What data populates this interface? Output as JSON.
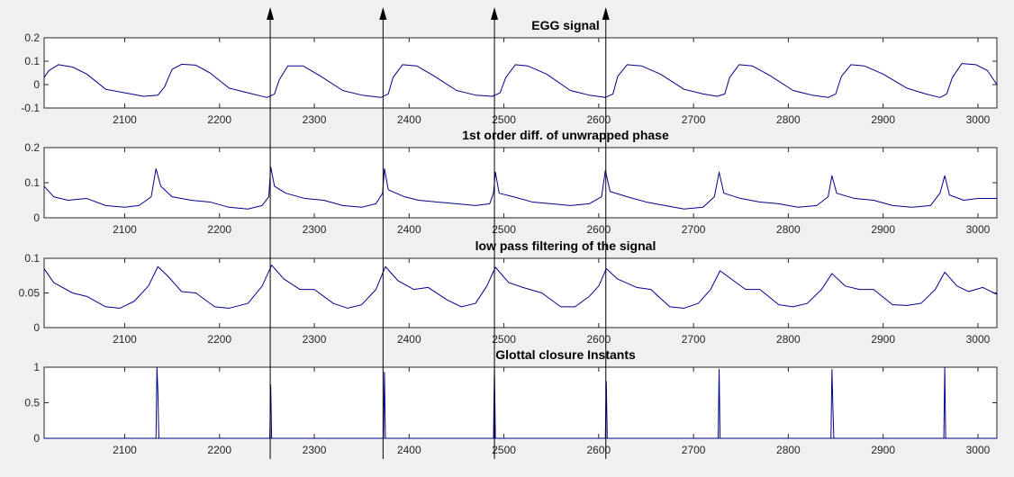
{
  "figure": {
    "background": "#f0f0f0",
    "plot_color": "#00008b",
    "arrow_color": "#000000"
  },
  "chart_data": [
    {
      "type": "line",
      "title": "EGG signal",
      "xlim": [
        2015,
        3020
      ],
      "ylim": [
        -0.1,
        0.2
      ],
      "xticks": [
        2100,
        2200,
        2300,
        2400,
        2500,
        2600,
        2700,
        2800,
        2900,
        3000
      ],
      "yticks": [
        -0.1,
        0,
        0.1,
        0.2
      ],
      "ytick_labels": [
        "-0.1",
        "0",
        "0.1",
        "0.2"
      ],
      "grid": false,
      "series": [
        {
          "values": [
            [
              2015,
              0.03
            ],
            [
              2020,
              0.06
            ],
            [
              2030,
              0.085
            ],
            [
              2045,
              0.075
            ],
            [
              2060,
              0.045
            ],
            [
              2080,
              -0.02
            ],
            [
              2100,
              -0.035
            ],
            [
              2120,
              -0.05
            ],
            [
              2135,
              -0.045
            ],
            [
              2142,
              -0.01
            ],
            [
              2150,
              0.065
            ],
            [
              2160,
              0.087
            ],
            [
              2175,
              0.083
            ],
            [
              2190,
              0.05
            ],
            [
              2210,
              -0.015
            ],
            [
              2230,
              -0.035
            ],
            [
              2250,
              -0.055
            ],
            [
              2258,
              -0.04
            ],
            [
              2263,
              0.02
            ],
            [
              2272,
              0.08
            ],
            [
              2288,
              0.08
            ],
            [
              2305,
              0.04
            ],
            [
              2330,
              -0.025
            ],
            [
              2350,
              -0.045
            ],
            [
              2370,
              -0.055
            ],
            [
              2378,
              -0.04
            ],
            [
              2383,
              0.03
            ],
            [
              2393,
              0.085
            ],
            [
              2408,
              0.08
            ],
            [
              2425,
              0.04
            ],
            [
              2450,
              -0.025
            ],
            [
              2470,
              -0.045
            ],
            [
              2488,
              -0.05
            ],
            [
              2496,
              -0.035
            ],
            [
              2502,
              0.03
            ],
            [
              2512,
              0.085
            ],
            [
              2525,
              0.08
            ],
            [
              2545,
              0.045
            ],
            [
              2570,
              -0.025
            ],
            [
              2590,
              -0.045
            ],
            [
              2607,
              -0.055
            ],
            [
              2615,
              -0.04
            ],
            [
              2620,
              0.035
            ],
            [
              2630,
              0.085
            ],
            [
              2645,
              0.08
            ],
            [
              2665,
              0.045
            ],
            [
              2690,
              -0.02
            ],
            [
              2710,
              -0.04
            ],
            [
              2725,
              -0.05
            ],
            [
              2733,
              -0.04
            ],
            [
              2738,
              0.03
            ],
            [
              2748,
              0.085
            ],
            [
              2762,
              0.08
            ],
            [
              2780,
              0.04
            ],
            [
              2805,
              -0.025
            ],
            [
              2825,
              -0.045
            ],
            [
              2842,
              -0.055
            ],
            [
              2850,
              -0.04
            ],
            [
              2856,
              0.035
            ],
            [
              2866,
              0.085
            ],
            [
              2880,
              0.08
            ],
            [
              2900,
              0.045
            ],
            [
              2925,
              -0.015
            ],
            [
              2945,
              -0.04
            ],
            [
              2960,
              -0.055
            ],
            [
              2967,
              -0.04
            ],
            [
              2973,
              0.03
            ],
            [
              2983,
              0.09
            ],
            [
              2998,
              0.085
            ],
            [
              3010,
              0.06
            ],
            [
              3020,
              0.0
            ]
          ]
        }
      ]
    },
    {
      "type": "line",
      "title": "1st order diff. of unwrapped phase",
      "xlim": [
        2015,
        3020
      ],
      "ylim": [
        0,
        0.2
      ],
      "xticks": [
        2100,
        2200,
        2300,
        2400,
        2500,
        2600,
        2700,
        2800,
        2900,
        3000
      ],
      "yticks": [
        0,
        0.1,
        0.2
      ],
      "ytick_labels": [
        "0",
        "0.1",
        "0.2"
      ],
      "grid": false,
      "series": [
        {
          "values": [
            [
              2015,
              0.09
            ],
            [
              2025,
              0.06
            ],
            [
              2040,
              0.05
            ],
            [
              2060,
              0.055
            ],
            [
              2080,
              0.035
            ],
            [
              2100,
              0.03
            ],
            [
              2115,
              0.035
            ],
            [
              2128,
              0.06
            ],
            [
              2133,
              0.14
            ],
            [
              2138,
              0.09
            ],
            [
              2150,
              0.06
            ],
            [
              2170,
              0.05
            ],
            [
              2190,
              0.045
            ],
            [
              2210,
              0.03
            ],
            [
              2230,
              0.025
            ],
            [
              2245,
              0.035
            ],
            [
              2252,
              0.06
            ],
            [
              2254,
              0.145
            ],
            [
              2258,
              0.09
            ],
            [
              2270,
              0.07
            ],
            [
              2290,
              0.055
            ],
            [
              2310,
              0.05
            ],
            [
              2330,
              0.035
            ],
            [
              2350,
              0.03
            ],
            [
              2365,
              0.04
            ],
            [
              2372,
              0.07
            ],
            [
              2374,
              0.14
            ],
            [
              2378,
              0.08
            ],
            [
              2395,
              0.06
            ],
            [
              2410,
              0.05
            ],
            [
              2430,
              0.045
            ],
            [
              2450,
              0.04
            ],
            [
              2470,
              0.035
            ],
            [
              2485,
              0.04
            ],
            [
              2489,
              0.07
            ],
            [
              2491,
              0.13
            ],
            [
              2495,
              0.07
            ],
            [
              2510,
              0.06
            ],
            [
              2530,
              0.045
            ],
            [
              2550,
              0.04
            ],
            [
              2570,
              0.035
            ],
            [
              2590,
              0.04
            ],
            [
              2603,
              0.06
            ],
            [
              2607,
              0.135
            ],
            [
              2612,
              0.075
            ],
            [
              2630,
              0.06
            ],
            [
              2650,
              0.045
            ],
            [
              2670,
              0.035
            ],
            [
              2690,
              0.025
            ],
            [
              2710,
              0.03
            ],
            [
              2722,
              0.06
            ],
            [
              2727,
              0.13
            ],
            [
              2732,
              0.07
            ],
            [
              2750,
              0.055
            ],
            [
              2770,
              0.045
            ],
            [
              2790,
              0.04
            ],
            [
              2810,
              0.03
            ],
            [
              2830,
              0.035
            ],
            [
              2842,
              0.06
            ],
            [
              2846,
              0.12
            ],
            [
              2851,
              0.07
            ],
            [
              2870,
              0.055
            ],
            [
              2890,
              0.05
            ],
            [
              2910,
              0.035
            ],
            [
              2930,
              0.03
            ],
            [
              2950,
              0.035
            ],
            [
              2960,
              0.07
            ],
            [
              2965,
              0.12
            ],
            [
              2970,
              0.065
            ],
            [
              2985,
              0.05
            ],
            [
              3000,
              0.055
            ],
            [
              3020,
              0.055
            ]
          ]
        }
      ]
    },
    {
      "type": "line",
      "title": "low pass filtering of the signal",
      "xlim": [
        2015,
        3020
      ],
      "ylim": [
        0,
        0.1
      ],
      "xticks": [
        2100,
        2200,
        2300,
        2400,
        2500,
        2600,
        2700,
        2800,
        2900,
        3000
      ],
      "yticks": [
        0,
        0.05,
        0.1
      ],
      "ytick_labels": [
        "0",
        "0.05",
        "0.1"
      ],
      "grid": false,
      "series": [
        {
          "values": [
            [
              2015,
              0.085
            ],
            [
              2025,
              0.065
            ],
            [
              2045,
              0.05
            ],
            [
              2060,
              0.045
            ],
            [
              2080,
              0.03
            ],
            [
              2095,
              0.028
            ],
            [
              2110,
              0.038
            ],
            [
              2125,
              0.06
            ],
            [
              2135,
              0.088
            ],
            [
              2145,
              0.075
            ],
            [
              2160,
              0.052
            ],
            [
              2175,
              0.05
            ],
            [
              2195,
              0.03
            ],
            [
              2210,
              0.028
            ],
            [
              2230,
              0.035
            ],
            [
              2245,
              0.06
            ],
            [
              2255,
              0.09
            ],
            [
              2268,
              0.07
            ],
            [
              2285,
              0.055
            ],
            [
              2300,
              0.055
            ],
            [
              2320,
              0.035
            ],
            [
              2335,
              0.028
            ],
            [
              2350,
              0.033
            ],
            [
              2365,
              0.055
            ],
            [
              2375,
              0.088
            ],
            [
              2388,
              0.068
            ],
            [
              2405,
              0.055
            ],
            [
              2420,
              0.058
            ],
            [
              2440,
              0.04
            ],
            [
              2455,
              0.03
            ],
            [
              2470,
              0.035
            ],
            [
              2482,
              0.06
            ],
            [
              2491,
              0.087
            ],
            [
              2505,
              0.065
            ],
            [
              2520,
              0.058
            ],
            [
              2540,
              0.05
            ],
            [
              2560,
              0.03
            ],
            [
              2575,
              0.03
            ],
            [
              2590,
              0.045
            ],
            [
              2600,
              0.06
            ],
            [
              2608,
              0.085
            ],
            [
              2620,
              0.07
            ],
            [
              2640,
              0.058
            ],
            [
              2655,
              0.055
            ],
            [
              2675,
              0.03
            ],
            [
              2690,
              0.028
            ],
            [
              2705,
              0.035
            ],
            [
              2718,
              0.055
            ],
            [
              2728,
              0.082
            ],
            [
              2740,
              0.07
            ],
            [
              2755,
              0.055
            ],
            [
              2770,
              0.055
            ],
            [
              2790,
              0.033
            ],
            [
              2805,
              0.03
            ],
            [
              2820,
              0.035
            ],
            [
              2835,
              0.055
            ],
            [
              2846,
              0.078
            ],
            [
              2860,
              0.06
            ],
            [
              2875,
              0.055
            ],
            [
              2890,
              0.055
            ],
            [
              2910,
              0.033
            ],
            [
              2925,
              0.032
            ],
            [
              2940,
              0.035
            ],
            [
              2955,
              0.055
            ],
            [
              2965,
              0.08
            ],
            [
              2978,
              0.06
            ],
            [
              2990,
              0.052
            ],
            [
              3005,
              0.058
            ],
            [
              3020,
              0.048
            ]
          ]
        }
      ]
    },
    {
      "type": "line",
      "title": "Glottal closure Instants",
      "xlim": [
        2015,
        3020
      ],
      "ylim": [
        0,
        1
      ],
      "xticks": [
        2100,
        2200,
        2300,
        2400,
        2500,
        2600,
        2700,
        2800,
        2900,
        3000
      ],
      "yticks": [
        0,
        0.5,
        1
      ],
      "ytick_labels": [
        "0",
        "0.5",
        "1"
      ],
      "grid": false,
      "series": [
        {
          "values": [
            [
              2015,
              0
            ],
            [
              2133,
              0
            ],
            [
              2134,
              1
            ],
            [
              2135,
              0.65
            ],
            [
              2136,
              0
            ],
            [
              2253,
              0
            ],
            [
              2254,
              0.75
            ],
            [
              2255,
              0
            ],
            [
              2373,
              0
            ],
            [
              2374,
              0.93
            ],
            [
              2375,
              0
            ],
            [
              2489,
              0
            ],
            [
              2490,
              1
            ],
            [
              2491,
              0
            ],
            [
              2607,
              0
            ],
            [
              2608,
              0.8
            ],
            [
              2609,
              0
            ],
            [
              2726,
              0
            ],
            [
              2727,
              0.97
            ],
            [
              2728,
              0
            ],
            [
              2845,
              0
            ],
            [
              2846,
              0.97
            ],
            [
              2847,
              0.45
            ],
            [
              2848,
              0
            ],
            [
              2964,
              0
            ],
            [
              2965,
              1
            ],
            [
              2966,
              0
            ],
            [
              3020,
              0
            ]
          ]
        }
      ]
    }
  ],
  "gci_markers": [
    2253.5,
    2372.5,
    2490,
    2607.5
  ]
}
